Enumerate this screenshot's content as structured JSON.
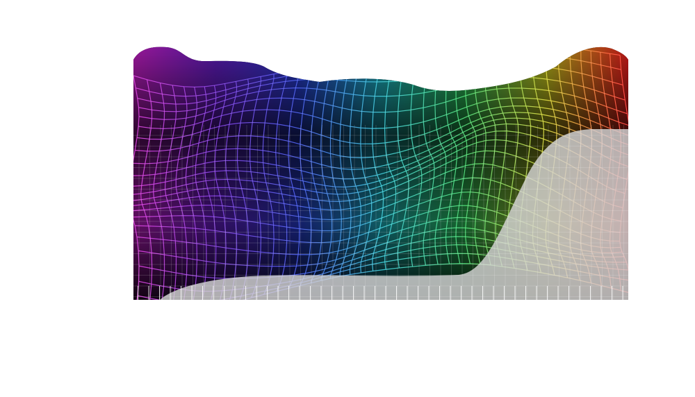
{
  "artwork": {
    "palette": [
      "#d020d0",
      "#6a1fd0",
      "#2a40e0",
      "#20c0d0",
      "#30d060",
      "#d0d020",
      "#ff2020"
    ],
    "background": "#ffffff",
    "overlay_color": "#c8c8c8",
    "base_color": "#000000"
  }
}
